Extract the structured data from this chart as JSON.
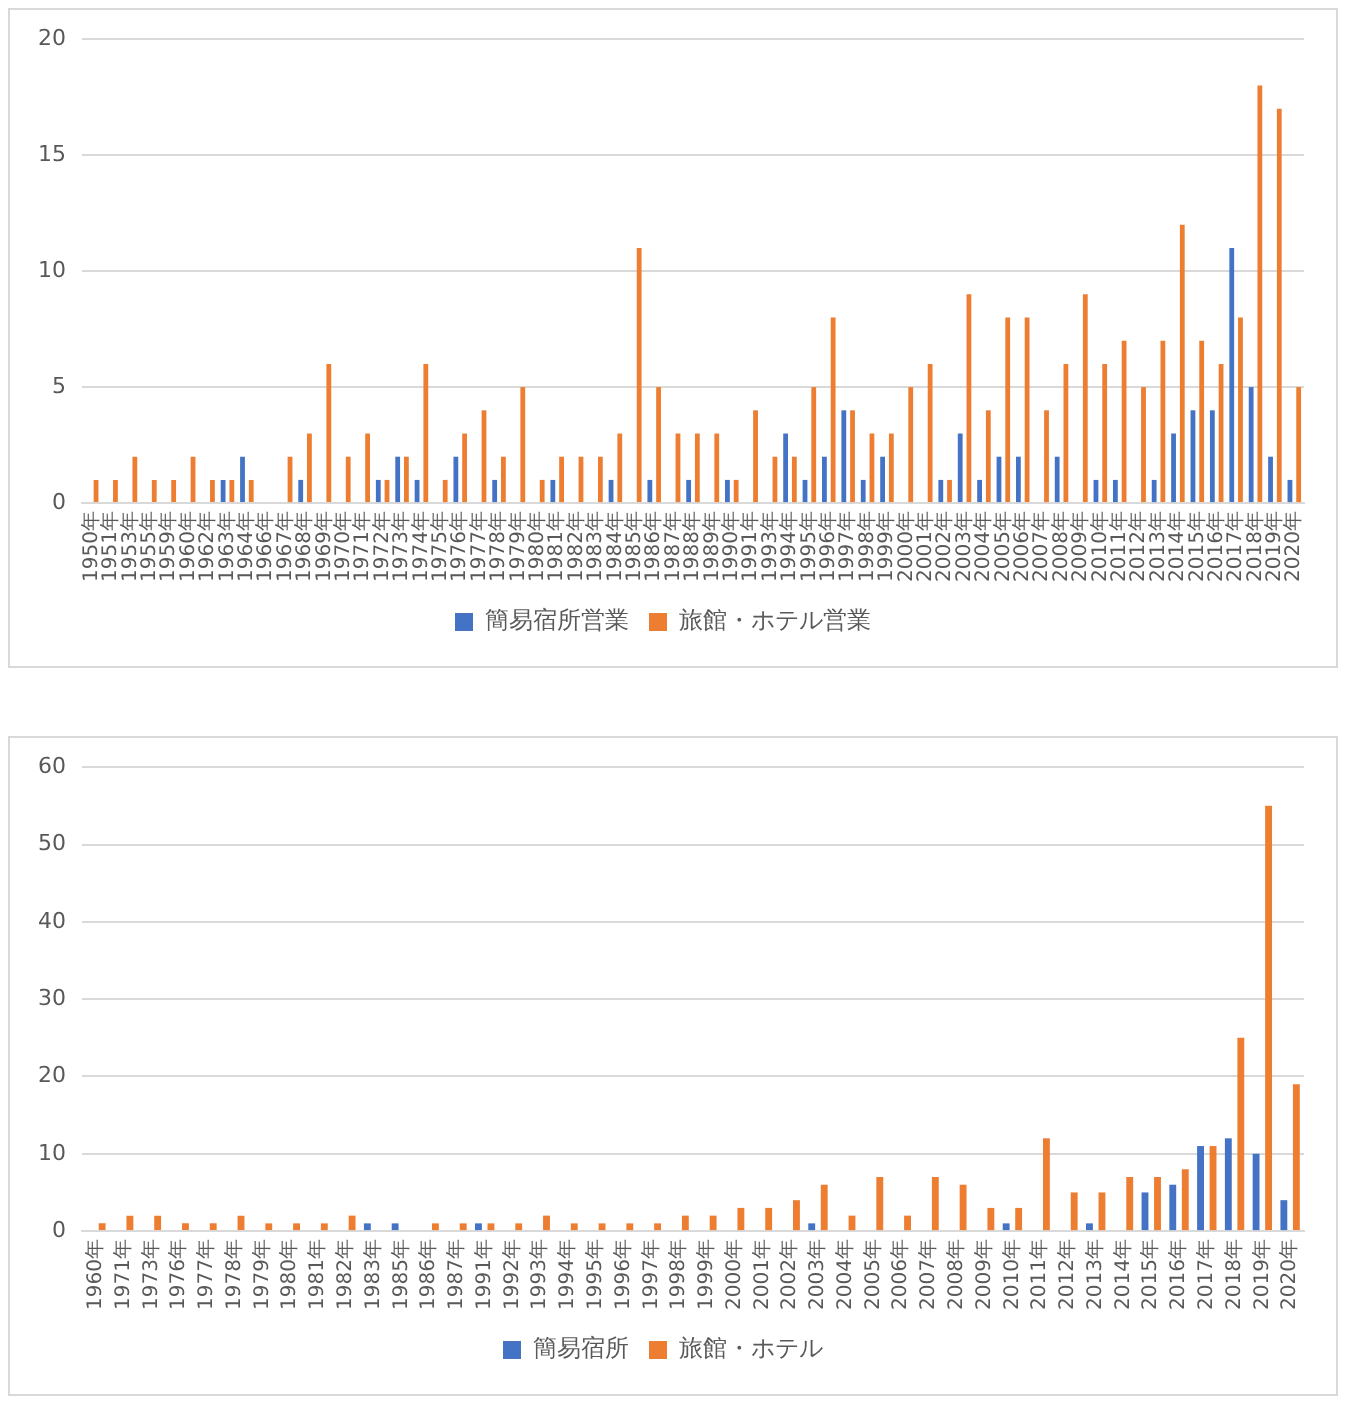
{
  "chart_data": [
    {
      "type": "bar",
      "categories": [
        "1950年",
        "1951年",
        "1953年",
        "1955年",
        "1959年",
        "1960年",
        "1962年",
        "1963年",
        "1964年",
        "1966年",
        "1967年",
        "1968年",
        "1969年",
        "1970年",
        "1971年",
        "1972年",
        "1973年",
        "1974年",
        "1975年",
        "1976年",
        "1977年",
        "1978年",
        "1979年",
        "1980年",
        "1981年",
        "1982年",
        "1983年",
        "1984年",
        "1985年",
        "1986年",
        "1987年",
        "1988年",
        "1989年",
        "1990年",
        "1991年",
        "1993年",
        "1994年",
        "1995年",
        "1996年",
        "1997年",
        "1998年",
        "1999年",
        "2000年",
        "2001年",
        "2002年",
        "2003年",
        "2004年",
        "2005年",
        "2006年",
        "2007年",
        "2008年",
        "2009年",
        "2010年",
        "2011年",
        "2012年",
        "2013年",
        "2014年",
        "2015年",
        "2016年",
        "2017年",
        "2018年",
        "2019年",
        "2020年"
      ],
      "series": [
        {
          "name": "簡易宿所営業",
          "color": "#4472c4",
          "values": [
            0,
            0,
            0,
            0,
            0,
            0,
            0,
            1,
            2,
            0,
            0,
            1,
            0,
            0,
            0,
            1,
            2,
            1,
            0,
            2,
            0,
            1,
            0,
            0,
            1,
            0,
            0,
            1,
            0,
            1,
            0,
            1,
            0,
            1,
            0,
            0,
            3,
            1,
            2,
            4,
            1,
            2,
            0,
            0,
            1,
            3,
            1,
            2,
            2,
            0,
            2,
            0,
            1,
            1,
            0,
            1,
            3,
            4,
            4,
            11,
            5,
            2,
            1
          ]
        },
        {
          "name": "旅館・ホテル営業",
          "color": "#ed7d31",
          "values": [
            1,
            1,
            2,
            1,
            1,
            2,
            1,
            1,
            1,
            0,
            2,
            3,
            6,
            2,
            3,
            1,
            2,
            6,
            1,
            3,
            4,
            2,
            5,
            1,
            2,
            2,
            2,
            3,
            11,
            5,
            3,
            3,
            3,
            1,
            4,
            2,
            2,
            5,
            8,
            4,
            3,
            3,
            5,
            6,
            1,
            9,
            4,
            8,
            8,
            4,
            6,
            9,
            6,
            7,
            5,
            7,
            12,
            7,
            6,
            8,
            18,
            17,
            5
          ]
        }
      ],
      "ylim": [
        0,
        20
      ],
      "yticks": [
        0,
        5,
        10,
        15,
        20
      ],
      "grid": "y",
      "legend": "bottom"
    },
    {
      "type": "bar",
      "categories": [
        "1960年",
        "1971年",
        "1973年",
        "1976年",
        "1977年",
        "1978年",
        "1979年",
        "1980年",
        "1981年",
        "1982年",
        "1983年",
        "1985年",
        "1986年",
        "1987年",
        "1991年",
        "1992年",
        "1993年",
        "1994年",
        "1995年",
        "1996年",
        "1997年",
        "1998年",
        "1999年",
        "2000年",
        "2001年",
        "2002年",
        "2003年",
        "2004年",
        "2005年",
        "2006年",
        "2007年",
        "2008年",
        "2009年",
        "2010年",
        "2011年",
        "2012年",
        "2013年",
        "2014年",
        "2015年",
        "2016年",
        "2017年",
        "2018年",
        "2019年",
        "2020年"
      ],
      "series": [
        {
          "name": "簡易宿所",
          "color": "#4472c4",
          "values": [
            0,
            0,
            0,
            0,
            0,
            0,
            0,
            0,
            0,
            0,
            1,
            1,
            0,
            0,
            1,
            0,
            0,
            0,
            0,
            0,
            0,
            0,
            0,
            0,
            0,
            0,
            1,
            0,
            0,
            0,
            0,
            0,
            0,
            1,
            0,
            0,
            1,
            0,
            5,
            6,
            11,
            12,
            10,
            4
          ]
        },
        {
          "name": "旅館・ホテル",
          "color": "#ed7d31",
          "values": [
            1,
            2,
            2,
            1,
            1,
            2,
            1,
            1,
            1,
            2,
            0,
            0,
            1,
            1,
            1,
            1,
            2,
            1,
            1,
            1,
            1,
            2,
            2,
            3,
            3,
            4,
            6,
            2,
            7,
            2,
            7,
            6,
            3,
            3,
            12,
            5,
            5,
            7,
            7,
            8,
            11,
            25,
            55,
            19
          ]
        }
      ],
      "ylim": [
        0,
        60
      ],
      "yticks": [
        0,
        10,
        20,
        30,
        40,
        50,
        60
      ],
      "grid": "y",
      "legend": "bottom"
    }
  ]
}
